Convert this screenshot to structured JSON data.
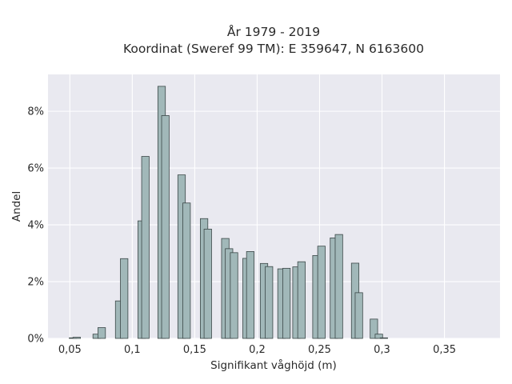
{
  "chart_data": {
    "type": "bar",
    "title_line1": "År 1979 - 2019",
    "title_line2": "Koordinat (Sweref 99 TM): E 359647, N 6163600",
    "xlabel": "Signifikant våghöjd (m)",
    "ylabel": "Andel",
    "xlim": [
      0.0325,
      0.3945
    ],
    "ylim": [
      0,
      0.093
    ],
    "x_ticks": [
      0.05,
      0.1,
      0.15,
      0.2,
      0.25,
      0.3,
      0.35
    ],
    "x_tick_labels": [
      "0,05",
      "0,1",
      "0,15",
      "0,2",
      "0,25",
      "0,3",
      "0,35"
    ],
    "y_ticks": [
      0,
      0.02,
      0.04,
      0.06,
      0.08
    ],
    "y_tick_labels": [
      "0%",
      "2%",
      "4%",
      "6%",
      "8%"
    ],
    "bar_width": 0.006,
    "grid": true,
    "colors": {
      "bar_fill": "#a1b8b9",
      "bar_edge": "#3b4747",
      "plot_background": "#e9e9f0",
      "grid": "#ffffff"
    },
    "bars": [
      {
        "x": 0.0525,
        "y": 0.0002
      },
      {
        "x": 0.0555,
        "y": 0.0004
      },
      {
        "x": 0.0715,
        "y": 0.0015
      },
      {
        "x": 0.0755,
        "y": 0.0038
      },
      {
        "x": 0.0895,
        "y": 0.0132
      },
      {
        "x": 0.0935,
        "y": 0.0281
      },
      {
        "x": 0.1075,
        "y": 0.0414
      },
      {
        "x": 0.1105,
        "y": 0.0641
      },
      {
        "x": 0.1235,
        "y": 0.0888
      },
      {
        "x": 0.1265,
        "y": 0.0785
      },
      {
        "x": 0.1395,
        "y": 0.0576
      },
      {
        "x": 0.1435,
        "y": 0.0477
      },
      {
        "x": 0.1575,
        "y": 0.0422
      },
      {
        "x": 0.1605,
        "y": 0.0385
      },
      {
        "x": 0.1745,
        "y": 0.0352
      },
      {
        "x": 0.1775,
        "y": 0.0316
      },
      {
        "x": 0.1815,
        "y": 0.0302
      },
      {
        "x": 0.1915,
        "y": 0.0282
      },
      {
        "x": 0.1945,
        "y": 0.0306
      },
      {
        "x": 0.2055,
        "y": 0.0264
      },
      {
        "x": 0.2095,
        "y": 0.0253
      },
      {
        "x": 0.2195,
        "y": 0.0245
      },
      {
        "x": 0.2235,
        "y": 0.0247
      },
      {
        "x": 0.2315,
        "y": 0.0252
      },
      {
        "x": 0.2355,
        "y": 0.027
      },
      {
        "x": 0.2475,
        "y": 0.0292
      },
      {
        "x": 0.2515,
        "y": 0.0325
      },
      {
        "x": 0.2615,
        "y": 0.0354
      },
      {
        "x": 0.2655,
        "y": 0.0366
      },
      {
        "x": 0.2785,
        "y": 0.0265
      },
      {
        "x": 0.2815,
        "y": 0.0161
      },
      {
        "x": 0.2935,
        "y": 0.0068
      },
      {
        "x": 0.2975,
        "y": 0.0015
      },
      {
        "x": 0.3015,
        "y": 0.0002
      }
    ]
  }
}
